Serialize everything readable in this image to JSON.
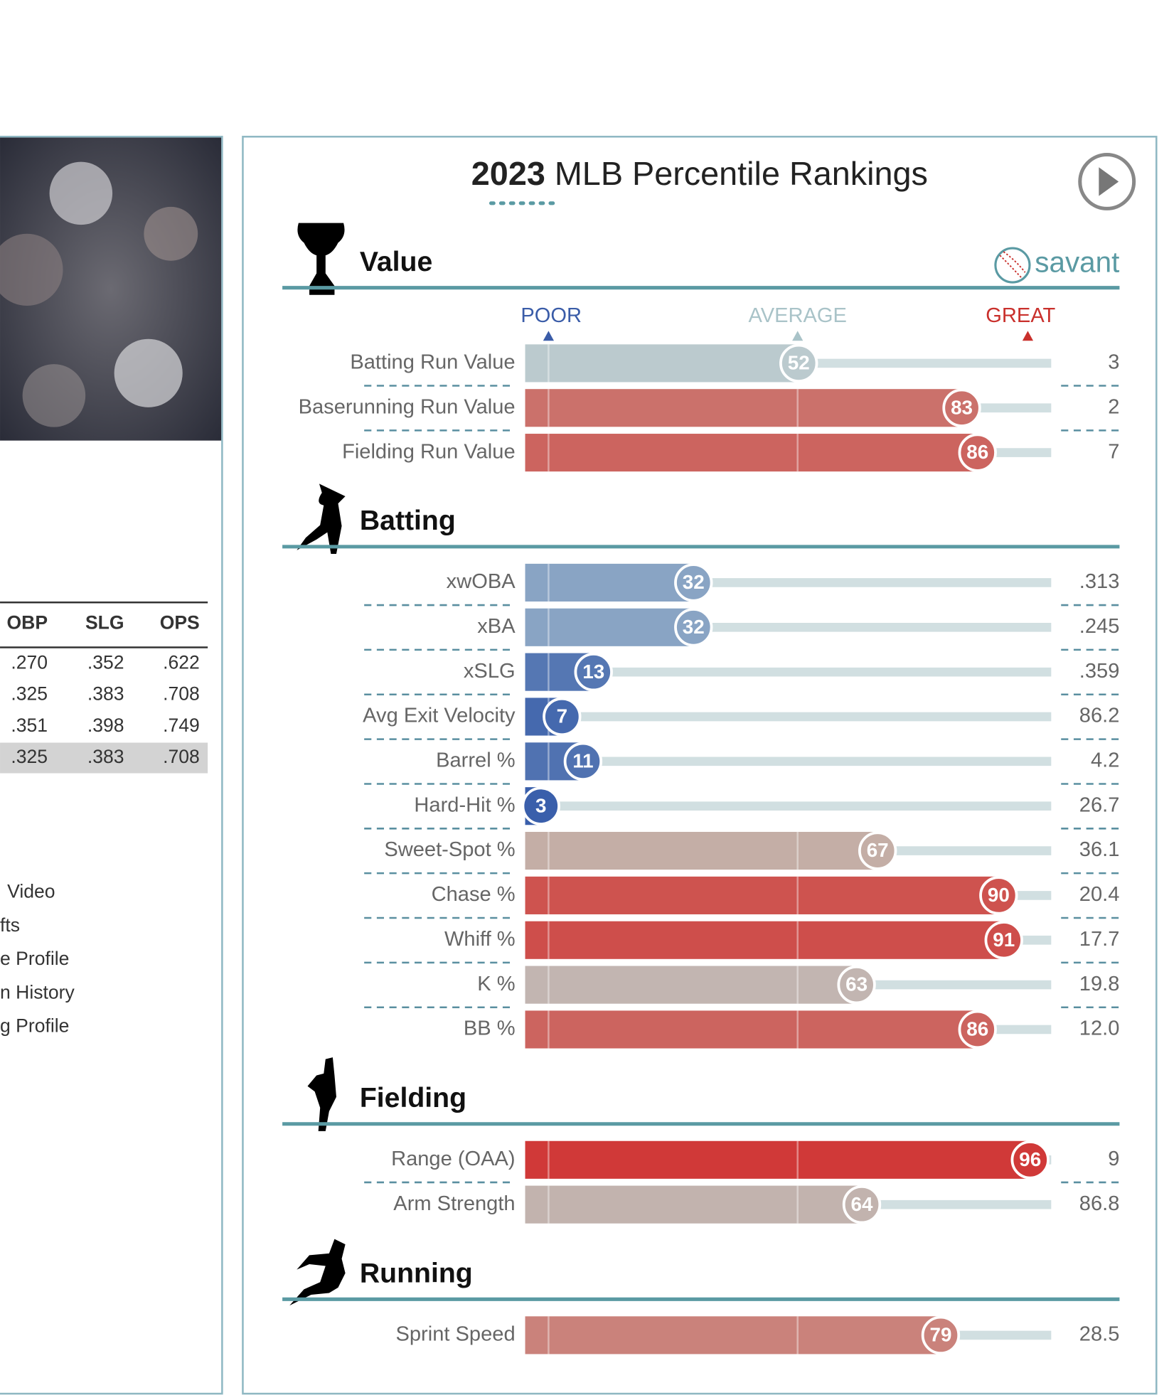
{
  "stats_table": {
    "headers": [
      "OBP",
      "SLG",
      "OPS"
    ],
    "rows": [
      [
        ".270",
        ".352",
        ".622"
      ],
      [
        ".325",
        ".383",
        ".708"
      ],
      [
        ".351",
        ".398",
        ".749"
      ],
      [
        ".325",
        ".383",
        ".708"
      ]
    ]
  },
  "links": [
    "Video",
    "fts",
    "e Profile",
    "n History",
    "g Profile"
  ],
  "percentile_panel": {
    "title_year": "2023",
    "title_rest": "MLB Percentile Rankings",
    "brand": "savant",
    "legend": [
      "POOR",
      "AVERAGE",
      "GREAT"
    ],
    "sections": [
      {
        "name": "Value",
        "rows": [
          {
            "label": "Batting Run Value",
            "percentile": 52,
            "value": "3"
          },
          {
            "label": "Baserunning Run Value",
            "percentile": 83,
            "value": "2"
          },
          {
            "label": "Fielding Run Value",
            "percentile": 86,
            "value": "7"
          }
        ]
      },
      {
        "name": "Batting",
        "rows": [
          {
            "label": "xwOBA",
            "percentile": 32,
            "value": ".313"
          },
          {
            "label": "xBA",
            "percentile": 32,
            "value": ".245"
          },
          {
            "label": "xSLG",
            "percentile": 13,
            "value": ".359"
          },
          {
            "label": "Avg Exit Velocity",
            "percentile": 7,
            "value": "86.2"
          },
          {
            "label": "Barrel %",
            "percentile": 11,
            "value": "4.2"
          },
          {
            "label": "Hard-Hit %",
            "percentile": 3,
            "value": "26.7"
          },
          {
            "label": "Sweet-Spot %",
            "percentile": 67,
            "value": "36.1"
          },
          {
            "label": "Chase %",
            "percentile": 90,
            "value": "20.4"
          },
          {
            "label": "Whiff %",
            "percentile": 91,
            "value": "17.7"
          },
          {
            "label": "K %",
            "percentile": 63,
            "value": "19.8"
          },
          {
            "label": "BB %",
            "percentile": 86,
            "value": "12.0"
          }
        ]
      },
      {
        "name": "Fielding",
        "rows": [
          {
            "label": "Range (OAA)",
            "percentile": 96,
            "value": "9"
          },
          {
            "label": "Arm Strength",
            "percentile": 64,
            "value": "86.8"
          }
        ]
      },
      {
        "name": "Running",
        "rows": [
          {
            "label": "Sprint Speed",
            "percentile": 79,
            "value": "28.5"
          }
        ]
      }
    ]
  }
}
